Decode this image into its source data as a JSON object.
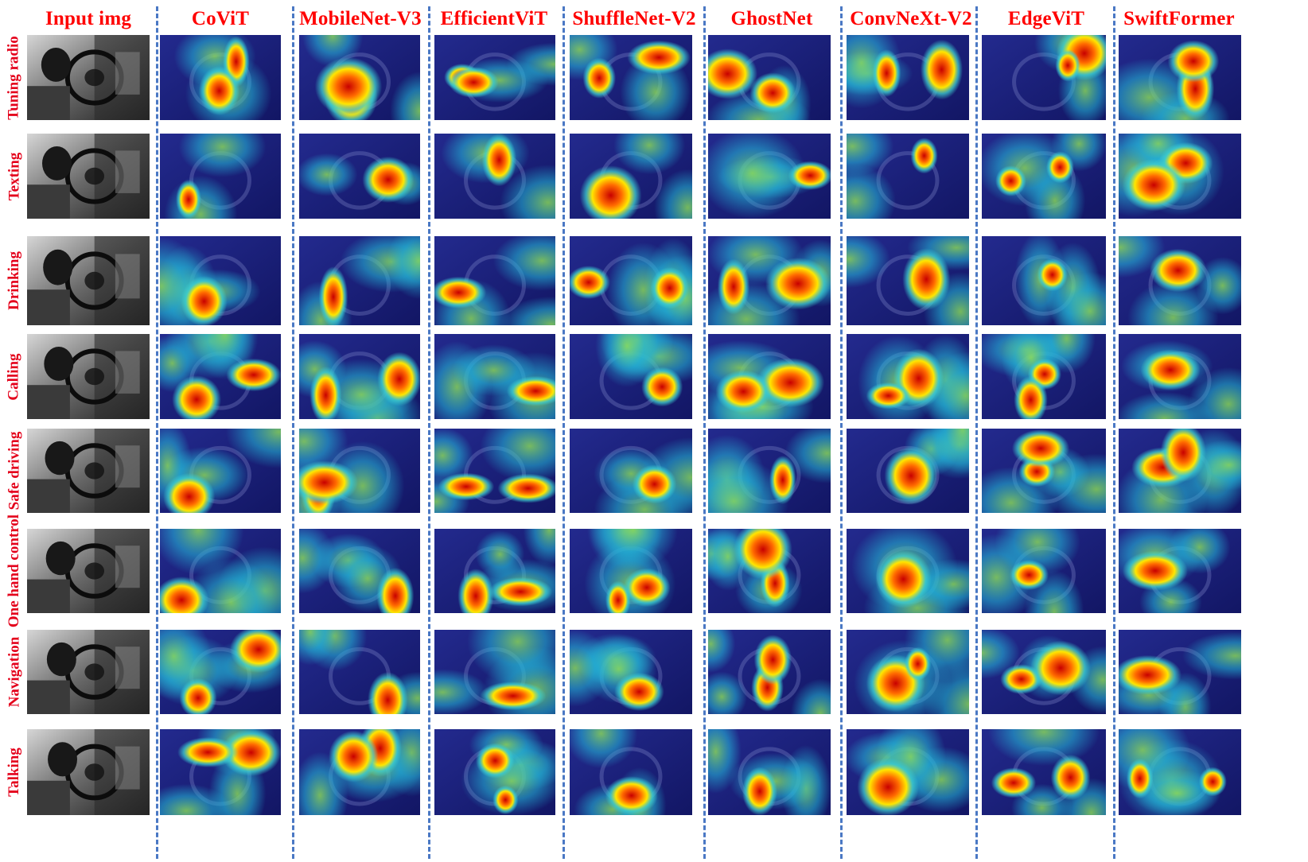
{
  "columns": [
    {
      "key": "input",
      "label": "Input img"
    },
    {
      "key": "covit",
      "label": "CoViT"
    },
    {
      "key": "mobilenet",
      "label": "MobileNet-V3"
    },
    {
      "key": "efficientvit",
      "label": "EfficientViT"
    },
    {
      "key": "shufflenet",
      "label": "ShuffleNet-V2"
    },
    {
      "key": "ghostnet",
      "label": "GhostNet"
    },
    {
      "key": "convnext",
      "label": "ConvNeXt-V2"
    },
    {
      "key": "edgevit",
      "label": "EdgeViT"
    },
    {
      "key": "swiftformer",
      "label": "SwiftFormer"
    }
  ],
  "rows": [
    {
      "label": "Tuning radio"
    },
    {
      "label": "Texting"
    },
    {
      "label": "Drinking"
    },
    {
      "label": "Calling"
    },
    {
      "label": "Safe driving"
    },
    {
      "label": "One hand control"
    },
    {
      "label": "Navigation"
    },
    {
      "label": "Talking"
    }
  ],
  "colors": {
    "header_text": "#ff0000",
    "row_label_text": "#e4001b",
    "separator": "#4a78c4",
    "heatmap_low": "#1a1f8a",
    "heatmap_high": "#d40000"
  }
}
